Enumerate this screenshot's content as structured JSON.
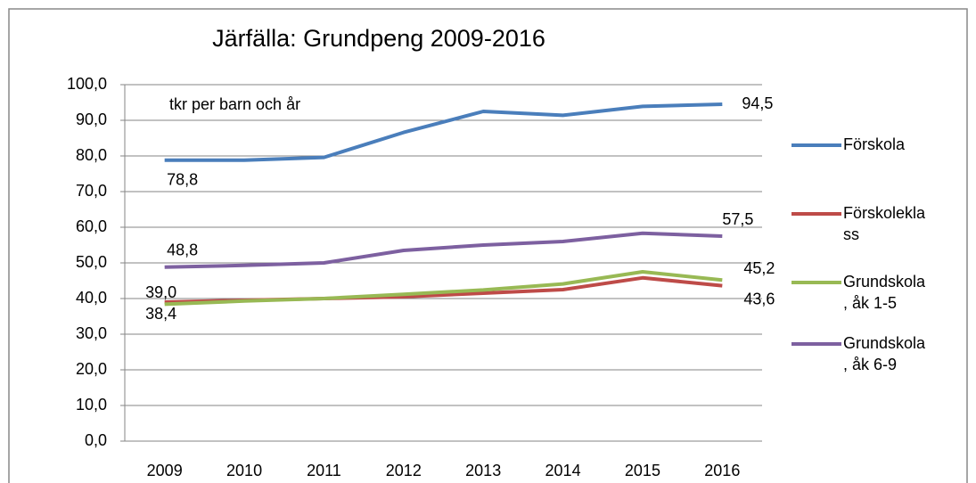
{
  "chart_data": {
    "type": "line",
    "title": "Järfälla: Grundpeng 2009-2016",
    "annotation": "tkr per barn och år",
    "categories": [
      "2009",
      "2010",
      "2011",
      "2012",
      "2013",
      "2014",
      "2015",
      "2016"
    ],
    "series": [
      {
        "name": "Förskola",
        "color": "#4a7ebb",
        "values": [
          78.8,
          78.8,
          79.6,
          86.6,
          92.5,
          91.4,
          93.9,
          94.5
        ],
        "value_labels": [
          "78,8",
          null,
          null,
          null,
          null,
          null,
          null,
          "94,5"
        ]
      },
      {
        "name": "Förskoleklass",
        "color": "#be4b48",
        "values": [
          39.0,
          39.5,
          40.0,
          40.5,
          41.5,
          42.5,
          45.8,
          43.6
        ],
        "value_labels": [
          "39,0",
          null,
          null,
          null,
          null,
          null,
          null,
          "43,6"
        ]
      },
      {
        "name": "Grundskola, åk 1-5",
        "color": "#98b954",
        "values": [
          38.4,
          39.3,
          40.0,
          41.2,
          42.4,
          44.1,
          47.5,
          45.2
        ],
        "value_labels": [
          "38,4",
          null,
          null,
          null,
          null,
          null,
          null,
          "45,2"
        ]
      },
      {
        "name": "Grundskola, åk 6-9",
        "color": "#7d60a0",
        "values": [
          48.8,
          49.3,
          50.0,
          53.5,
          55.0,
          56.0,
          58.3,
          57.5
        ],
        "value_labels": [
          "48,8",
          null,
          null,
          null,
          null,
          null,
          null,
          "57,5"
        ]
      }
    ],
    "ylim": [
      0,
      100
    ],
    "yticks": [
      {
        "value": 0,
        "label": "0,0"
      },
      {
        "value": 10,
        "label": "10,0"
      },
      {
        "value": 20,
        "label": "20,0"
      },
      {
        "value": 30,
        "label": "30,0"
      },
      {
        "value": 40,
        "label": "40,0"
      },
      {
        "value": 50,
        "label": "50,0"
      },
      {
        "value": 60,
        "label": "60,0"
      },
      {
        "value": 70,
        "label": "70,0"
      },
      {
        "value": 80,
        "label": "80,0"
      },
      {
        "value": 90,
        "label": "90,0"
      },
      {
        "value": 100,
        "label": "100,0"
      }
    ],
    "grid": true,
    "legend": "right"
  }
}
